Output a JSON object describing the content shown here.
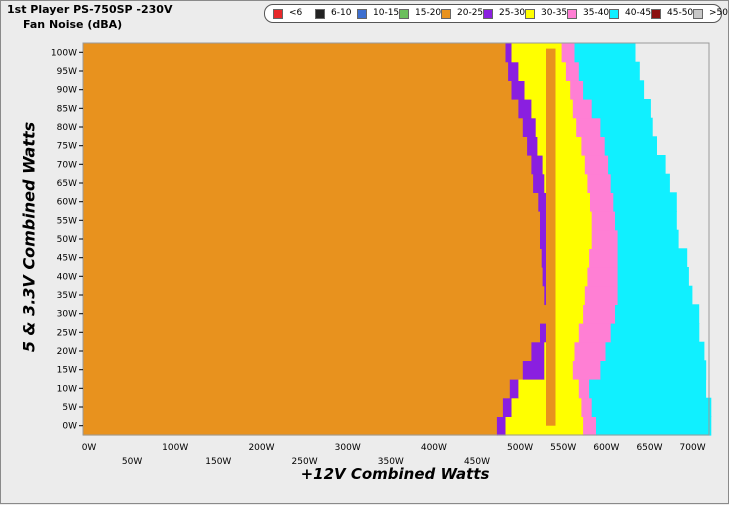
{
  "title": "1st Player PS-750SP -230V",
  "subtitle": "Fan Noise (dBA)",
  "legend": [
    {
      "label": "<6",
      "color": "#e8282a"
    },
    {
      "label": "6-10",
      "color": "#222222"
    },
    {
      "label": "10-15",
      "color": "#3d6fd0"
    },
    {
      "label": "15-20",
      "color": "#6cbf5e"
    },
    {
      "label": "20-25",
      "color": "#e8921e"
    },
    {
      "label": "25-30",
      "color": "#8a1fe0"
    },
    {
      "label": "30-35",
      "color": "#ffff00"
    },
    {
      "label": "35-40",
      "color": "#ff7fd4"
    },
    {
      "label": "40-45",
      "color": "#10f0ff"
    },
    {
      "label": "45-50",
      "color": "#8b1010"
    },
    {
      "label": ">50",
      "color": "#c8c8c8"
    }
  ],
  "chart_data": {
    "type": "heatmap",
    "title": "1st Player PS-750SP -230V",
    "subtitle": "Fan Noise (dBA)",
    "xlabel": "+12V Combined Watts",
    "ylabel": "5 & 3.3V Combined Watts",
    "xlim": [
      0,
      730
    ],
    "ylim": [
      0,
      100
    ],
    "x_ticks_upper": [
      "0W",
      "100W",
      "200W",
      "300W",
      "400W",
      "500W",
      "550W",
      "600W",
      "650W",
      "700W"
    ],
    "x_ticks_lower": [
      "50W",
      "150W",
      "250W",
      "350W",
      "450W"
    ],
    "y_ticks": [
      "0W",
      "5W",
      "10W",
      "15W",
      "20W",
      "25W",
      "30W",
      "35W",
      "40W",
      "45W",
      "50W",
      "55W",
      "60W",
      "65W",
      "70W",
      "75W",
      "80W",
      "85W",
      "90W",
      "95W",
      "100W"
    ],
    "y_values": [
      0,
      5,
      10,
      15,
      20,
      25,
      30,
      35,
      40,
      45,
      50,
      55,
      60,
      65,
      70,
      75,
      80,
      85,
      90,
      95,
      100
    ],
    "zone_boundaries_x": {
      "description": "For each y value, the +12V watts where each noise band ends (20-25, 25-30, 30-35, 35-40, 40-45 dBA)",
      "end_20_25": [
        480,
        487,
        495,
        510,
        520,
        530,
        537,
        535,
        533,
        532,
        530,
        530,
        528,
        522,
        520,
        515,
        510,
        505,
        497,
        493,
        490
      ],
      "end_25_30": [
        490,
        497,
        505,
        535,
        535,
        537,
        540,
        540,
        540,
        540,
        538,
        538,
        537,
        535,
        533,
        527,
        525,
        520,
        512,
        505,
        497
      ],
      "end_30_35": [
        580,
        578,
        575,
        568,
        570,
        575,
        580,
        582,
        585,
        587,
        590,
        590,
        588,
        585,
        582,
        578,
        572,
        568,
        565,
        560,
        555
      ],
      "end_35_40": [
        595,
        590,
        587,
        600,
        606,
        612,
        617,
        620,
        620,
        620,
        620,
        617,
        615,
        612,
        609,
        605,
        600,
        590,
        580,
        575,
        570
      ],
      "end_40_45": [
        728,
        728,
        722,
        722,
        720,
        714,
        714,
        706,
        702,
        700,
        690,
        688,
        688,
        680,
        675,
        665,
        660,
        658,
        650,
        645,
        640
      ]
    },
    "notch": {
      "x_start": 537,
      "x_end": 548,
      "band": "20-25",
      "between_y": [
        0,
        100
      ]
    }
  }
}
